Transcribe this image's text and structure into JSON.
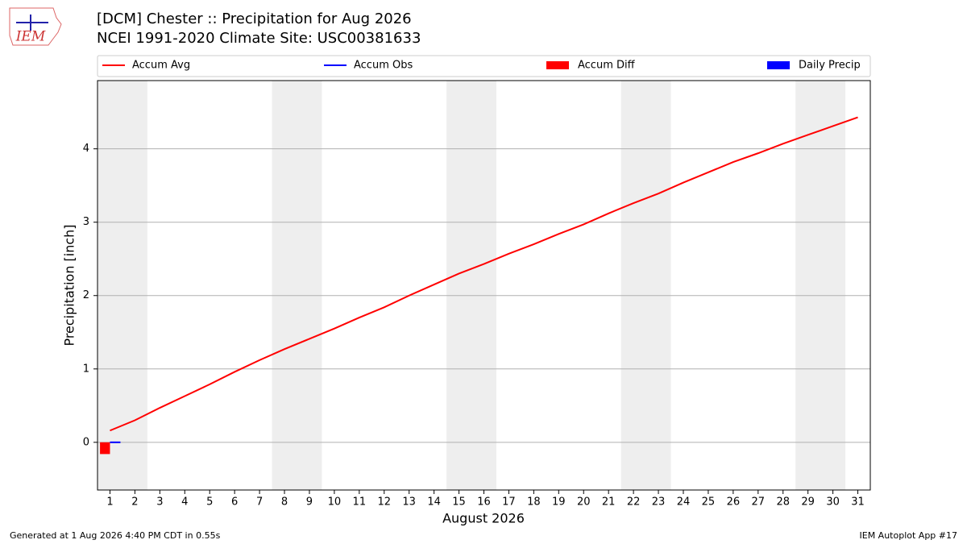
{
  "chart_data": {
    "type": "line",
    "title": "[DCM] Chester :: Precipitation for Aug 2026",
    "subtitle": "NCEI 1991-2020 Climate Site: USC00381633",
    "logo_text": "IEM",
    "xlabel": "August 2026",
    "ylabel": "Precipitation [inch]",
    "x": [
      1,
      2,
      3,
      4,
      5,
      6,
      7,
      8,
      9,
      10,
      11,
      12,
      13,
      14,
      15,
      16,
      17,
      18,
      19,
      20,
      21,
      22,
      23,
      24,
      25,
      26,
      27,
      28,
      29,
      30,
      31
    ],
    "series": [
      {
        "name": "Accum Avg",
        "mark": "line",
        "color": "#ff0000",
        "values": [
          0.16,
          0.3,
          0.47,
          0.63,
          0.79,
          0.96,
          1.12,
          1.27,
          1.41,
          1.55,
          1.7,
          1.84,
          2.0,
          2.15,
          2.3,
          2.43,
          2.57,
          2.7,
          2.84,
          2.97,
          3.12,
          3.26,
          3.39,
          3.54,
          3.68,
          3.82,
          3.94,
          4.07,
          4.19,
          4.31,
          4.43
        ]
      },
      {
        "name": "Accum Obs",
        "mark": "line",
        "color": "#0000ff",
        "values": [
          0,
          null,
          null,
          null,
          null,
          null,
          null,
          null,
          null,
          null,
          null,
          null,
          null,
          null,
          null,
          null,
          null,
          null,
          null,
          null,
          null,
          null,
          null,
          null,
          null,
          null,
          null,
          null,
          null,
          null,
          null
        ]
      },
      {
        "name": "Accum Diff",
        "mark": "bar",
        "color": "#ff0000",
        "values": [
          -0.16,
          null,
          null,
          null,
          null,
          null,
          null,
          null,
          null,
          null,
          null,
          null,
          null,
          null,
          null,
          null,
          null,
          null,
          null,
          null,
          null,
          null,
          null,
          null,
          null,
          null,
          null,
          null,
          null,
          null,
          null
        ]
      },
      {
        "name": "Daily Precip",
        "mark": "bar",
        "color": "#0000ff",
        "values": [
          0,
          null,
          null,
          null,
          null,
          null,
          null,
          null,
          null,
          null,
          null,
          null,
          null,
          null,
          null,
          null,
          null,
          null,
          null,
          null,
          null,
          null,
          null,
          null,
          null,
          null,
          null,
          null,
          null,
          null,
          null
        ]
      }
    ],
    "shaded_spans": [
      [
        0.5,
        2.5
      ],
      [
        7.5,
        9.5
      ],
      [
        14.5,
        16.5
      ],
      [
        21.5,
        23.5
      ],
      [
        28.5,
        30.5
      ]
    ],
    "shade_color": "#eeeeee",
    "xlim": [
      0.5,
      31.5
    ],
    "ylim": [
      -0.65,
      4.93
    ],
    "xticks": [
      1,
      2,
      3,
      4,
      5,
      6,
      7,
      8,
      9,
      10,
      11,
      12,
      13,
      14,
      15,
      16,
      17,
      18,
      19,
      20,
      21,
      22,
      23,
      24,
      25,
      26,
      27,
      28,
      29,
      30,
      31
    ],
    "yticks": [
      0,
      1,
      2,
      3,
      4
    ],
    "grid": true,
    "footer_left": "Generated at 1 Aug 2026 4:40 PM CDT in 0.55s",
    "footer_right": "IEM Autoplot App #17"
  }
}
